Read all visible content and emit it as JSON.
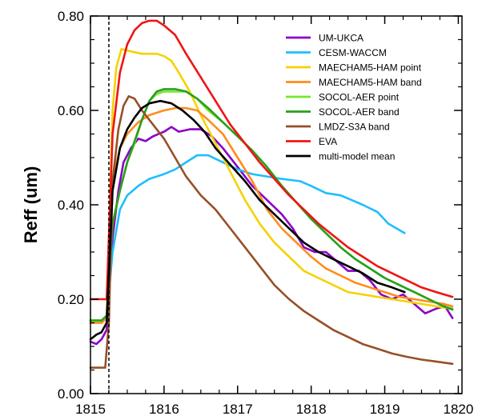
{
  "chart_data": {
    "type": "line",
    "title": "",
    "xlabel": "",
    "ylabel": "Reff (um)",
    "xlim": [
      1815,
      1820.05
    ],
    "ylim": [
      0,
      0.8
    ],
    "x_ticks": [
      1815,
      1816,
      1817,
      1818,
      1819,
      1820
    ],
    "x_tick_labels": [
      "1815",
      "1816",
      "1817",
      "1818",
      "1819",
      "1820"
    ],
    "y_ticks": [
      0,
      0.2,
      0.4,
      0.6,
      0.8
    ],
    "y_tick_labels": [
      "0.00",
      "0.20",
      "0.40",
      "0.60",
      "0.80"
    ],
    "grid": false,
    "legend_position": "top-right",
    "reference_lines": {
      "vertical_dashed_x": 1815.25
    },
    "series": [
      {
        "name": "UM-UKCA",
        "color": "#8b00c8",
        "points": [
          [
            1815.0,
            0.11
          ],
          [
            1815.08,
            0.105
          ],
          [
            1815.15,
            0.115
          ],
          [
            1815.22,
            0.135
          ],
          [
            1815.3,
            0.33
          ],
          [
            1815.38,
            0.43
          ],
          [
            1815.45,
            0.49
          ],
          [
            1815.55,
            0.52
          ],
          [
            1815.65,
            0.54
          ],
          [
            1815.75,
            0.535
          ],
          [
            1815.85,
            0.545
          ],
          [
            1816.0,
            0.555
          ],
          [
            1816.1,
            0.565
          ],
          [
            1816.2,
            0.555
          ],
          [
            1816.35,
            0.56
          ],
          [
            1816.5,
            0.56
          ],
          [
            1816.65,
            0.545
          ],
          [
            1816.8,
            0.52
          ],
          [
            1817.0,
            0.48
          ],
          [
            1817.2,
            0.44
          ],
          [
            1817.4,
            0.41
          ],
          [
            1817.6,
            0.38
          ],
          [
            1817.75,
            0.35
          ],
          [
            1817.9,
            0.31
          ],
          [
            1818.05,
            0.3
          ],
          [
            1818.2,
            0.3
          ],
          [
            1818.35,
            0.28
          ],
          [
            1818.5,
            0.26
          ],
          [
            1818.65,
            0.26
          ],
          [
            1818.8,
            0.24
          ],
          [
            1818.95,
            0.21
          ],
          [
            1819.1,
            0.2
          ],
          [
            1819.25,
            0.21
          ],
          [
            1819.4,
            0.19
          ],
          [
            1819.55,
            0.17
          ],
          [
            1819.7,
            0.18
          ],
          [
            1819.82,
            0.185
          ],
          [
            1819.92,
            0.16
          ]
        ]
      },
      {
        "name": "CESM-WACCM",
        "color": "#1ebeff",
        "points": [
          [
            1815.0,
            0.15
          ],
          [
            1815.15,
            0.15
          ],
          [
            1815.22,
            0.16
          ],
          [
            1815.3,
            0.3
          ],
          [
            1815.4,
            0.39
          ],
          [
            1815.5,
            0.42
          ],
          [
            1815.65,
            0.44
          ],
          [
            1815.8,
            0.455
          ],
          [
            1816.0,
            0.465
          ],
          [
            1816.15,
            0.475
          ],
          [
            1816.3,
            0.49
          ],
          [
            1816.45,
            0.505
          ],
          [
            1816.6,
            0.505
          ],
          [
            1816.8,
            0.49
          ],
          [
            1817.0,
            0.475
          ],
          [
            1817.2,
            0.465
          ],
          [
            1817.4,
            0.46
          ],
          [
            1817.6,
            0.455
          ],
          [
            1817.85,
            0.45
          ],
          [
            1818.0,
            0.44
          ],
          [
            1818.2,
            0.425
          ],
          [
            1818.4,
            0.42
          ],
          [
            1818.55,
            0.41
          ],
          [
            1818.7,
            0.4
          ],
          [
            1818.9,
            0.385
          ],
          [
            1819.05,
            0.36
          ],
          [
            1819.27,
            0.34
          ]
        ]
      },
      {
        "name": "MAECHAM5-HAM point",
        "color": "#f5d200",
        "points": [
          [
            1815.0,
            0.15
          ],
          [
            1815.15,
            0.15
          ],
          [
            1815.22,
            0.16
          ],
          [
            1815.3,
            0.6
          ],
          [
            1815.35,
            0.69
          ],
          [
            1815.42,
            0.73
          ],
          [
            1815.55,
            0.725
          ],
          [
            1815.7,
            0.72
          ],
          [
            1815.9,
            0.72
          ],
          [
            1816.0,
            0.715
          ],
          [
            1816.1,
            0.705
          ],
          [
            1816.2,
            0.68
          ],
          [
            1816.35,
            0.64
          ],
          [
            1816.5,
            0.59
          ],
          [
            1816.7,
            0.53
          ],
          [
            1816.9,
            0.47
          ],
          [
            1817.1,
            0.41
          ],
          [
            1817.3,
            0.36
          ],
          [
            1817.5,
            0.32
          ],
          [
            1817.7,
            0.29
          ],
          [
            1817.9,
            0.26
          ],
          [
            1818.1,
            0.245
          ],
          [
            1818.3,
            0.23
          ],
          [
            1818.5,
            0.215
          ],
          [
            1818.7,
            0.21
          ],
          [
            1818.9,
            0.205
          ],
          [
            1819.1,
            0.2
          ],
          [
            1819.3,
            0.195
          ],
          [
            1819.5,
            0.19
          ],
          [
            1819.7,
            0.185
          ],
          [
            1819.9,
            0.18
          ]
        ]
      },
      {
        "name": "MAECHAM5-HAM band",
        "color": "#ff8c1e",
        "points": [
          [
            1815.0,
            0.15
          ],
          [
            1815.15,
            0.15
          ],
          [
            1815.22,
            0.16
          ],
          [
            1815.3,
            0.45
          ],
          [
            1815.4,
            0.52
          ],
          [
            1815.5,
            0.55
          ],
          [
            1815.65,
            0.575
          ],
          [
            1815.8,
            0.59
          ],
          [
            1816.0,
            0.6
          ],
          [
            1816.15,
            0.605
          ],
          [
            1816.3,
            0.605
          ],
          [
            1816.45,
            0.6
          ],
          [
            1816.6,
            0.58
          ],
          [
            1816.8,
            0.55
          ],
          [
            1817.0,
            0.5
          ],
          [
            1817.2,
            0.45
          ],
          [
            1817.4,
            0.39
          ],
          [
            1817.6,
            0.35
          ],
          [
            1817.8,
            0.32
          ],
          [
            1818.0,
            0.29
          ],
          [
            1818.2,
            0.265
          ],
          [
            1818.4,
            0.25
          ],
          [
            1818.6,
            0.235
          ],
          [
            1818.8,
            0.225
          ],
          [
            1819.0,
            0.215
          ],
          [
            1819.2,
            0.205
          ],
          [
            1819.4,
            0.2
          ],
          [
            1819.6,
            0.195
          ],
          [
            1819.8,
            0.19
          ],
          [
            1819.92,
            0.185
          ]
        ]
      },
      {
        "name": "SOCOL-AER point",
        "color": "#78e62d",
        "points": [
          [
            1815.0,
            0.155
          ],
          [
            1815.15,
            0.155
          ],
          [
            1815.22,
            0.165
          ],
          [
            1815.3,
            0.36
          ],
          [
            1815.4,
            0.43
          ],
          [
            1815.5,
            0.49
          ],
          [
            1815.6,
            0.53
          ],
          [
            1815.7,
            0.58
          ],
          [
            1815.8,
            0.62
          ],
          [
            1815.9,
            0.635
          ],
          [
            1816.0,
            0.64
          ],
          [
            1816.15,
            0.64
          ],
          [
            1816.3,
            0.64
          ],
          [
            1816.45,
            0.625
          ],
          [
            1816.6,
            0.6
          ],
          [
            1816.8,
            0.575
          ],
          [
            1817.0,
            0.545
          ],
          [
            1817.2,
            0.515
          ],
          [
            1817.4,
            0.48
          ],
          [
            1817.6,
            0.44
          ],
          [
            1817.8,
            0.405
          ],
          [
            1818.0,
            0.37
          ],
          [
            1818.2,
            0.34
          ],
          [
            1818.4,
            0.31
          ],
          [
            1818.6,
            0.285
          ],
          [
            1818.8,
            0.265
          ],
          [
            1819.0,
            0.245
          ],
          [
            1819.2,
            0.23
          ],
          [
            1819.4,
            0.215
          ],
          [
            1819.6,
            0.2
          ],
          [
            1819.8,
            0.185
          ],
          [
            1819.92,
            0.18
          ]
        ]
      },
      {
        "name": "SOCOL-AER band",
        "color": "#28a01e",
        "points": [
          [
            1815.0,
            0.155
          ],
          [
            1815.15,
            0.155
          ],
          [
            1815.22,
            0.165
          ],
          [
            1815.3,
            0.36
          ],
          [
            1815.4,
            0.43
          ],
          [
            1815.5,
            0.49
          ],
          [
            1815.6,
            0.535
          ],
          [
            1815.7,
            0.58
          ],
          [
            1815.8,
            0.62
          ],
          [
            1815.9,
            0.64
          ],
          [
            1816.0,
            0.645
          ],
          [
            1816.15,
            0.645
          ],
          [
            1816.3,
            0.64
          ],
          [
            1816.45,
            0.625
          ],
          [
            1816.6,
            0.605
          ],
          [
            1816.8,
            0.575
          ],
          [
            1817.0,
            0.545
          ],
          [
            1817.2,
            0.515
          ],
          [
            1817.4,
            0.48
          ],
          [
            1817.6,
            0.44
          ],
          [
            1817.8,
            0.405
          ],
          [
            1818.0,
            0.37
          ],
          [
            1818.2,
            0.34
          ],
          [
            1818.4,
            0.31
          ],
          [
            1818.6,
            0.285
          ],
          [
            1818.8,
            0.265
          ],
          [
            1819.0,
            0.245
          ],
          [
            1819.2,
            0.23
          ],
          [
            1819.4,
            0.215
          ],
          [
            1819.6,
            0.2
          ],
          [
            1819.8,
            0.185
          ],
          [
            1819.92,
            0.178
          ]
        ]
      },
      {
        "name": "LMDZ-S3A band",
        "color": "#965028",
        "points": [
          [
            1815.0,
            0.055
          ],
          [
            1815.1,
            0.055
          ],
          [
            1815.2,
            0.055
          ],
          [
            1815.25,
            0.15
          ],
          [
            1815.3,
            0.45
          ],
          [
            1815.38,
            0.56
          ],
          [
            1815.45,
            0.61
          ],
          [
            1815.52,
            0.63
          ],
          [
            1815.6,
            0.625
          ],
          [
            1815.7,
            0.6
          ],
          [
            1815.85,
            0.57
          ],
          [
            1816.0,
            0.54
          ],
          [
            1816.15,
            0.5
          ],
          [
            1816.3,
            0.46
          ],
          [
            1816.5,
            0.42
          ],
          [
            1816.7,
            0.39
          ],
          [
            1816.9,
            0.35
          ],
          [
            1817.1,
            0.31
          ],
          [
            1817.3,
            0.27
          ],
          [
            1817.5,
            0.23
          ],
          [
            1817.7,
            0.2
          ],
          [
            1817.9,
            0.175
          ],
          [
            1818.1,
            0.155
          ],
          [
            1818.3,
            0.135
          ],
          [
            1818.5,
            0.12
          ],
          [
            1818.7,
            0.105
          ],
          [
            1818.9,
            0.095
          ],
          [
            1819.1,
            0.085
          ],
          [
            1819.3,
            0.078
          ],
          [
            1819.5,
            0.072
          ],
          [
            1819.7,
            0.068
          ],
          [
            1819.92,
            0.063
          ]
        ]
      },
      {
        "name": "EVA",
        "color": "#f01414",
        "points": [
          [
            1815.0,
            0.2
          ],
          [
            1815.22,
            0.2
          ],
          [
            1815.3,
            0.55
          ],
          [
            1815.4,
            0.68
          ],
          [
            1815.5,
            0.74
          ],
          [
            1815.6,
            0.77
          ],
          [
            1815.7,
            0.785
          ],
          [
            1815.8,
            0.79
          ],
          [
            1815.9,
            0.79
          ],
          [
            1816.0,
            0.78
          ],
          [
            1816.15,
            0.76
          ],
          [
            1816.3,
            0.72
          ],
          [
            1816.5,
            0.67
          ],
          [
            1816.7,
            0.62
          ],
          [
            1816.9,
            0.57
          ],
          [
            1817.1,
            0.53
          ],
          [
            1817.3,
            0.49
          ],
          [
            1817.5,
            0.455
          ],
          [
            1817.7,
            0.42
          ],
          [
            1817.9,
            0.39
          ],
          [
            1818.1,
            0.36
          ],
          [
            1818.3,
            0.335
          ],
          [
            1818.5,
            0.31
          ],
          [
            1818.7,
            0.29
          ],
          [
            1818.9,
            0.27
          ],
          [
            1819.1,
            0.255
          ],
          [
            1819.3,
            0.24
          ],
          [
            1819.5,
            0.225
          ],
          [
            1819.7,
            0.215
          ],
          [
            1819.92,
            0.205
          ]
        ]
      },
      {
        "name": "multi-model mean",
        "color": "#000000",
        "points": [
          [
            1815.0,
            0.115
          ],
          [
            1815.08,
            0.125
          ],
          [
            1815.15,
            0.13
          ],
          [
            1815.22,
            0.15
          ],
          [
            1815.3,
            0.43
          ],
          [
            1815.4,
            0.52
          ],
          [
            1815.5,
            0.56
          ],
          [
            1815.6,
            0.585
          ],
          [
            1815.7,
            0.605
          ],
          [
            1815.8,
            0.615
          ],
          [
            1815.95,
            0.62
          ],
          [
            1816.1,
            0.615
          ],
          [
            1816.25,
            0.6
          ],
          [
            1816.4,
            0.58
          ],
          [
            1816.55,
            0.555
          ],
          [
            1816.7,
            0.52
          ],
          [
            1816.9,
            0.485
          ],
          [
            1817.1,
            0.45
          ],
          [
            1817.3,
            0.41
          ],
          [
            1817.5,
            0.38
          ],
          [
            1817.7,
            0.35
          ],
          [
            1817.9,
            0.32
          ],
          [
            1818.1,
            0.3
          ],
          [
            1818.3,
            0.285
          ],
          [
            1818.5,
            0.27
          ],
          [
            1818.7,
            0.255
          ],
          [
            1818.9,
            0.235
          ],
          [
            1819.1,
            0.225
          ],
          [
            1819.27,
            0.215
          ]
        ]
      }
    ]
  }
}
